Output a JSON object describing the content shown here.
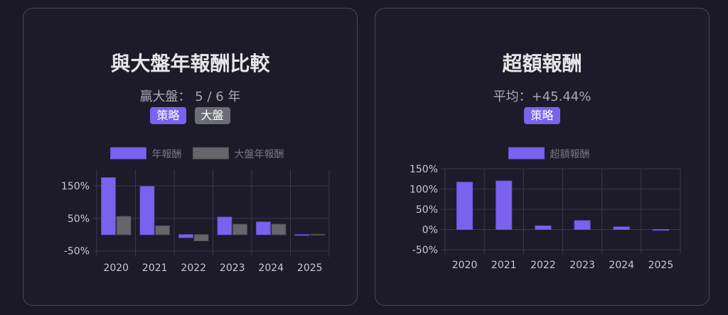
{
  "left_card": {
    "title": "與大盤年報酬比較",
    "subtitle": "贏大盤： 5 / 6 年",
    "badges": [
      "策略",
      "大盤"
    ]
  },
  "right_card": {
    "title": "超額報酬",
    "subtitle": "平均：+45.44%",
    "badges": [
      "策略"
    ]
  },
  "colors": {
    "strategy": "#7a62ee",
    "market": "#66656b",
    "grid": "#3b3946",
    "text": "#c9c8d0"
  },
  "chart_data": [
    {
      "type": "bar",
      "categories": [
        "2020",
        "2021",
        "2022",
        "2023",
        "2024",
        "2025"
      ],
      "series": [
        {
          "name": "年報酬",
          "values": [
            175,
            148,
            -9,
            54,
            39,
            -1
          ]
        },
        {
          "name": "大盤年報酬",
          "values": [
            56,
            27,
            -19,
            32,
            32,
            1
          ]
        }
      ],
      "yticks": [
        "150%",
        "50%",
        "-50%"
      ],
      "ytick_values": [
        150,
        50,
        -50
      ],
      "ylim": [
        -55,
        200
      ],
      "grid": true,
      "legend": "top"
    },
    {
      "type": "bar",
      "categories": [
        "2020",
        "2021",
        "2022",
        "2023",
        "2024",
        "2025"
      ],
      "series": [
        {
          "name": "超額報酬",
          "values": [
            117,
            120,
            9,
            22,
            6.5,
            -2
          ]
        }
      ],
      "yticks": [
        "150%",
        "100%",
        "50%",
        "0%",
        "-50%"
      ],
      "ytick_values": [
        150,
        100,
        50,
        0,
        -50
      ],
      "ylim": [
        -50,
        150
      ],
      "grid": true,
      "legend": "top"
    }
  ]
}
